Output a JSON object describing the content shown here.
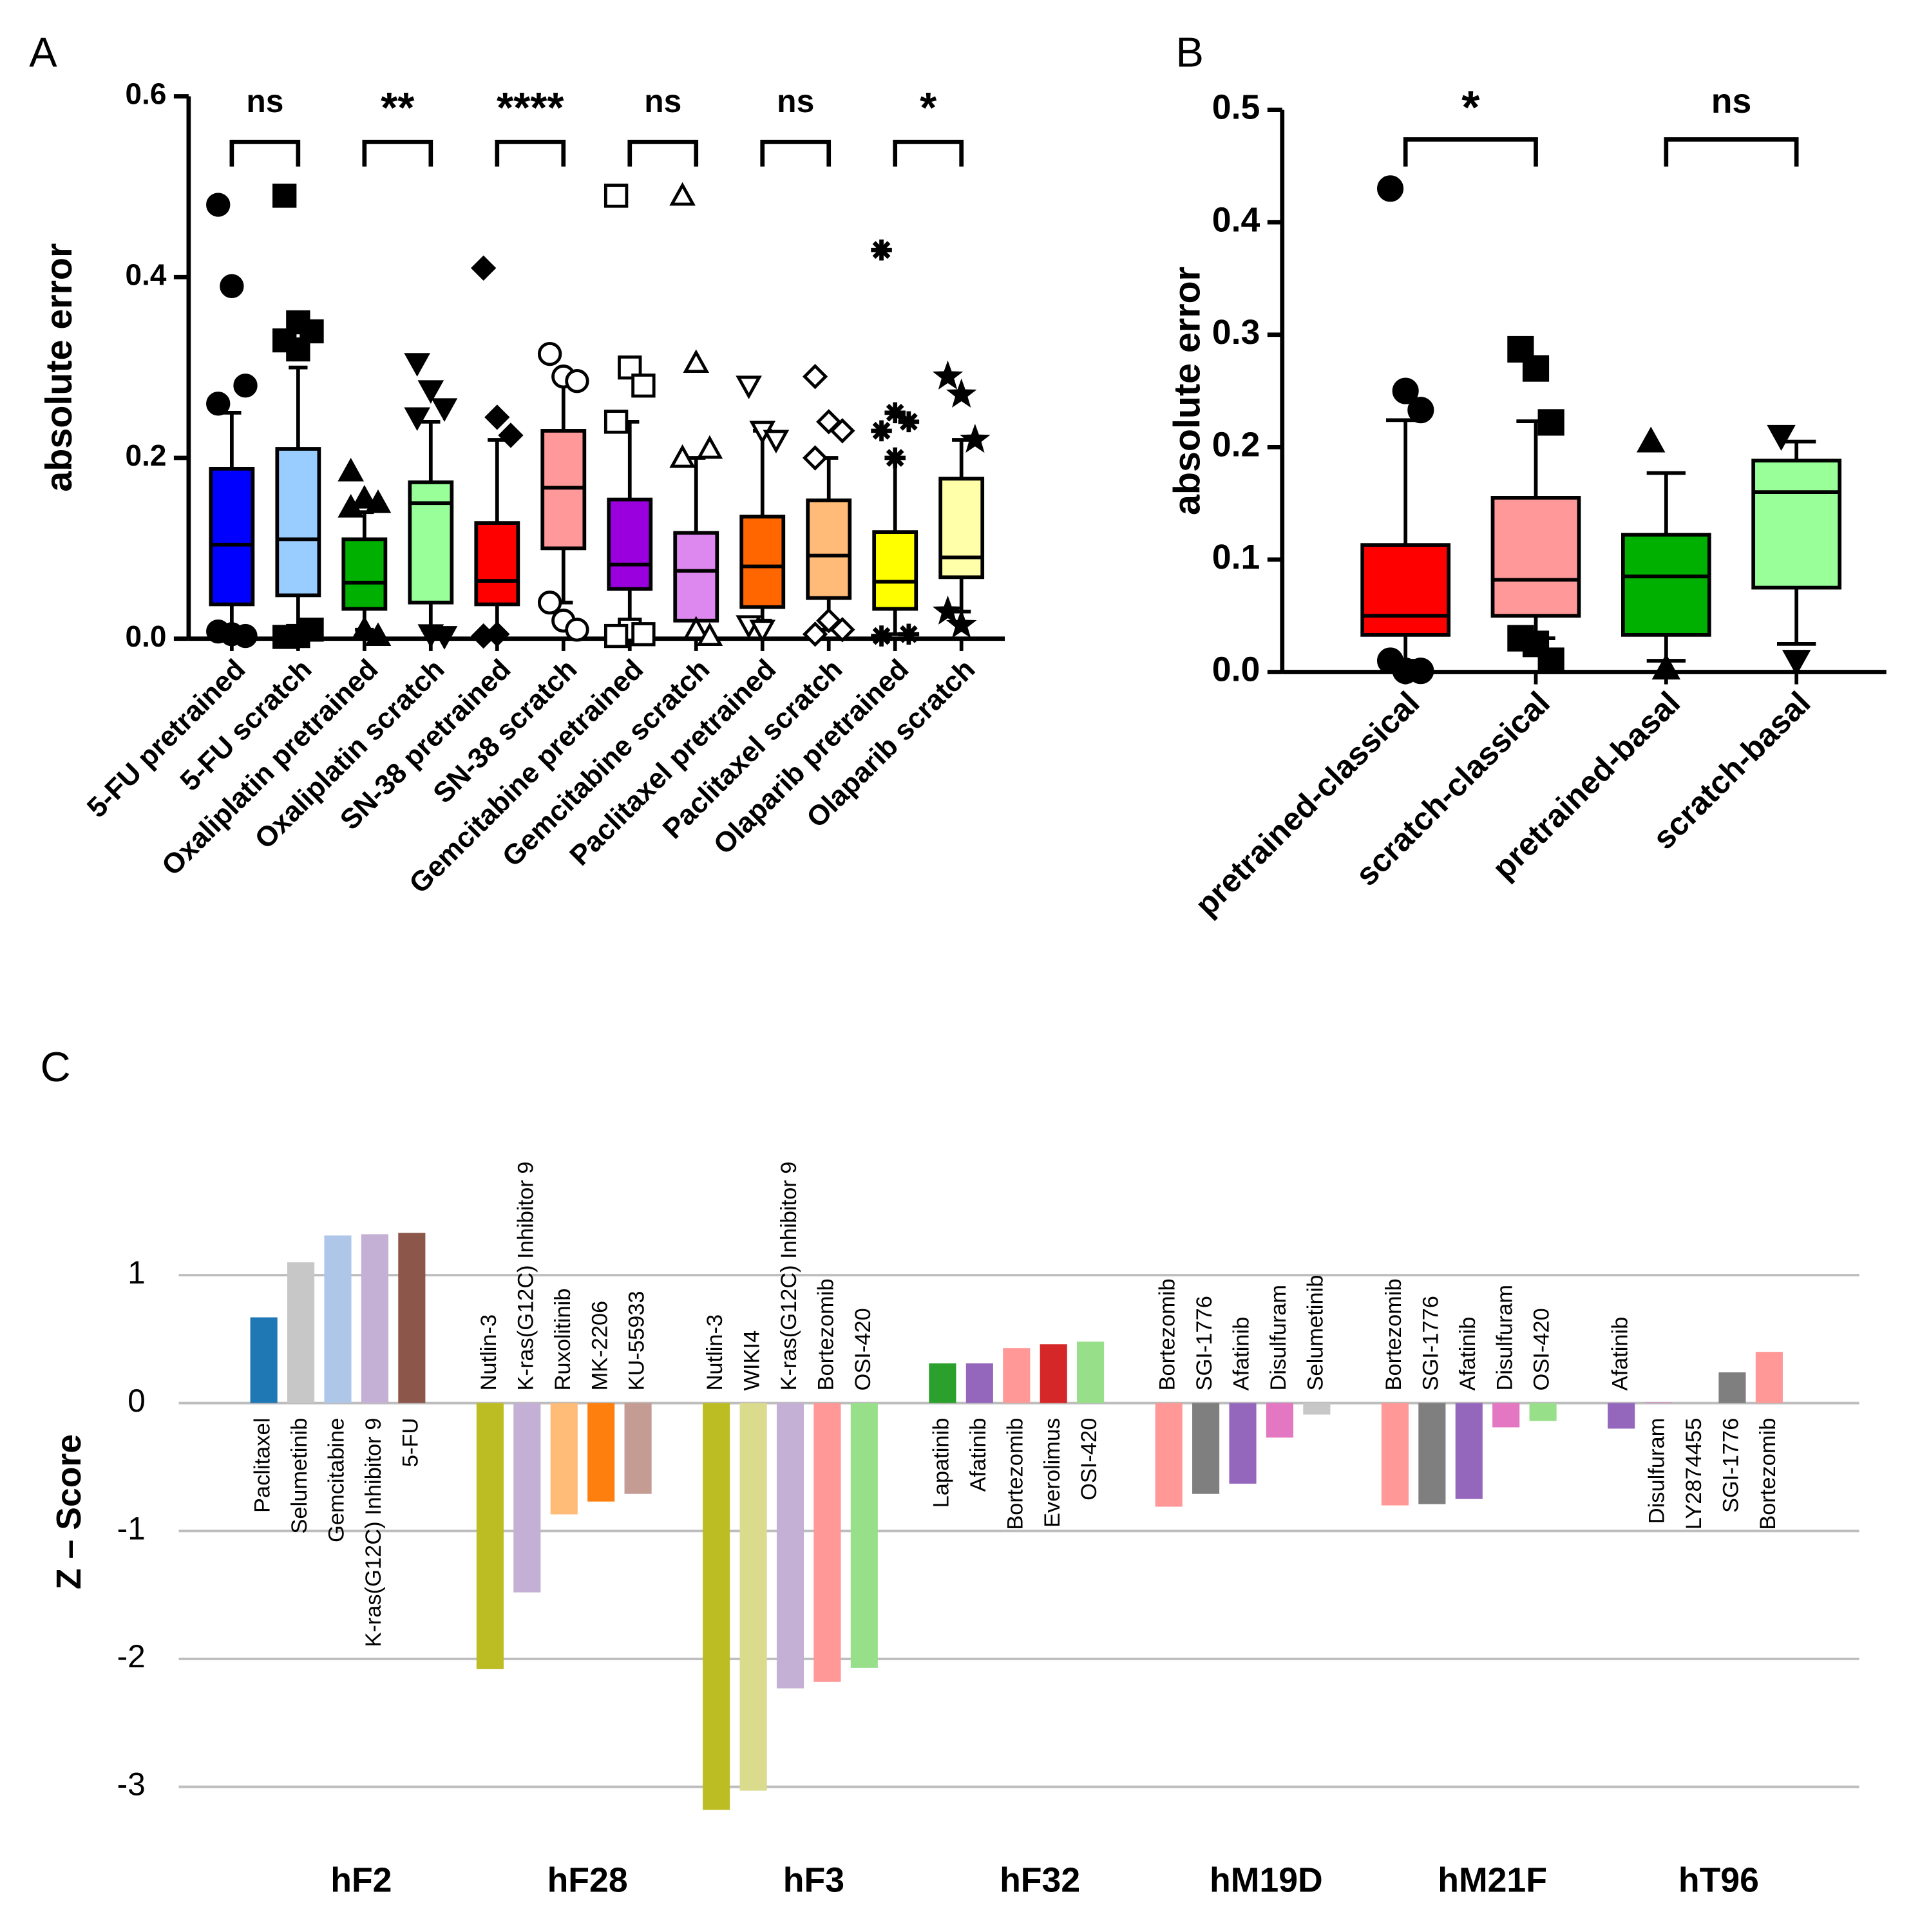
{
  "chart_data": [
    {
      "type": "box",
      "panel_label": "A",
      "y_label": "absolute error",
      "ylim": [
        0,
        0.6
      ],
      "yticks": [
        {
          "value": 0,
          "label": "0.0"
        },
        {
          "value": 0.2,
          "label": "0.2"
        },
        {
          "value": 0.4,
          "label": "0.4"
        },
        {
          "value": 0.6,
          "label": "0.6"
        }
      ],
      "categories": [
        "5-FU pretrained",
        "5-FU scratch",
        "Oxaliplatin pretrained",
        "Oxaliplatin scratch",
        "SN-38 pretrained",
        "SN-38 scratch",
        "Gemcitabine pretrained",
        "Gemcitabine scratch",
        "Paclitaxel pretrained",
        "Paclitaxel scratch",
        "Olaparib pretrained",
        "Olaparib scratch"
      ],
      "boxes": [
        {
          "color": "#0000ff",
          "marker": "circle",
          "filled": true,
          "whisker_low": 0.01,
          "q1": 0.038,
          "median": 0.104,
          "q3": 0.188,
          "whisker_high": 0.25,
          "outliers": [
            0.48,
            0.39,
            0.28,
            0.26,
            0.005,
            0.003,
            0.008
          ]
        },
        {
          "color": "#99ccff",
          "marker": "square",
          "filled": true,
          "whisker_low": 0.01,
          "q1": 0.048,
          "median": 0.11,
          "q3": 0.21,
          "whisker_high": 0.3,
          "outliers": [
            0.49,
            0.35,
            0.34,
            0.33,
            0.32,
            0.01,
            0.002,
            0.003
          ]
        },
        {
          "color": "#00b000",
          "marker": "triangle",
          "filled": true,
          "whisker_low": 0.01,
          "q1": 0.033,
          "median": 0.062,
          "q3": 0.11,
          "whisker_high": 0.14,
          "outliers": [
            0.185,
            0.155,
            0.15,
            0.145,
            0.01,
            0.003
          ]
        },
        {
          "color": "#99ff99",
          "marker": "down-triangle",
          "filled": true,
          "whisker_low": 0.01,
          "q1": 0.04,
          "median": 0.15,
          "q3": 0.173,
          "whisker_high": 0.24,
          "outliers": [
            0.305,
            0.275,
            0.255,
            0.245,
            0.005,
            0.003
          ]
        },
        {
          "color": "#ff0000",
          "marker": "diamond",
          "filled": true,
          "whisker_low": 0.005,
          "q1": 0.038,
          "median": 0.064,
          "q3": 0.128,
          "whisker_high": 0.22,
          "outliers": [
            0.41,
            0.245,
            0.225,
            0.003,
            0.005
          ]
        },
        {
          "color": "#ff9999",
          "marker": "circle",
          "filled": false,
          "whisker_low": 0.04,
          "q1": 0.1,
          "median": 0.167,
          "q3": 0.23,
          "whisker_high": 0.29,
          "outliers": [
            0.315,
            0.29,
            0.285,
            0.04,
            0.02,
            0.01
          ]
        },
        {
          "color": "#9900dd",
          "marker": "square",
          "filled": false,
          "whisker_low": 0.01,
          "q1": 0.055,
          "median": 0.082,
          "q3": 0.154,
          "whisker_high": 0.24,
          "outliers": [
            0.49,
            0.3,
            0.28,
            0.24,
            0.01,
            0.005,
            0.003
          ]
        },
        {
          "color": "#dd88ee",
          "marker": "triangle",
          "filled": false,
          "whisker_low": 0.005,
          "q1": 0.02,
          "median": 0.075,
          "q3": 0.117,
          "whisker_high": 0.2,
          "outliers": [
            0.49,
            0.305,
            0.21,
            0.2,
            0.01,
            0.003
          ]
        },
        {
          "color": "#ff6600",
          "marker": "down-triangle",
          "filled": false,
          "whisker_low": 0.02,
          "q1": 0.035,
          "median": 0.08,
          "q3": 0.135,
          "whisker_high": 0.23,
          "outliers": [
            0.28,
            0.23,
            0.22,
            0.015,
            0.01
          ]
        },
        {
          "color": "#ffbb77",
          "marker": "diamond",
          "filled": false,
          "whisker_low": 0.01,
          "q1": 0.045,
          "median": 0.092,
          "q3": 0.153,
          "whisker_high": 0.2,
          "outliers": [
            0.29,
            0.24,
            0.23,
            0.2,
            0.02,
            0.01,
            0.005
          ]
        },
        {
          "color": "#ffff00",
          "marker": "asterisk",
          "filled": true,
          "whisker_low": 0.005,
          "q1": 0.033,
          "median": 0.063,
          "q3": 0.118,
          "whisker_high": 0.2,
          "outliers": [
            0.43,
            0.25,
            0.24,
            0.23,
            0.2,
            0.005,
            0.003
          ]
        },
        {
          "color": "#ffffaa",
          "marker": "star",
          "filled": true,
          "whisker_low": 0.03,
          "q1": 0.068,
          "median": 0.09,
          "q3": 0.177,
          "whisker_high": 0.22,
          "outliers": [
            0.29,
            0.27,
            0.22,
            0.03,
            0.015
          ]
        }
      ],
      "comparisons": [
        {
          "pair": [
            0,
            1
          ],
          "label": "ns"
        },
        {
          "pair": [
            2,
            3
          ],
          "label": "**"
        },
        {
          "pair": [
            4,
            5
          ],
          "label": "****"
        },
        {
          "pair": [
            6,
            7
          ],
          "label": "ns"
        },
        {
          "pair": [
            8,
            9
          ],
          "label": "ns"
        },
        {
          "pair": [
            10,
            11
          ],
          "label": "*"
        }
      ]
    },
    {
      "type": "box",
      "panel_label": "B",
      "y_label": "absolute error",
      "ylim": [
        0,
        0.5
      ],
      "yticks": [
        {
          "value": 0,
          "label": "0.0"
        },
        {
          "value": 0.1,
          "label": "0.1"
        },
        {
          "value": 0.2,
          "label": "0.2"
        },
        {
          "value": 0.3,
          "label": "0.3"
        },
        {
          "value": 0.4,
          "label": "0.4"
        },
        {
          "value": 0.5,
          "label": "0.5"
        }
      ],
      "categories": [
        "pretrained-classical",
        "scratch-classical",
        "pretrained-basal",
        "scratch-basal"
      ],
      "boxes": [
        {
          "color": "#ff0000",
          "marker": "circle",
          "filled": true,
          "whisker_low": 0.01,
          "q1": 0.033,
          "median": 0.05,
          "q3": 0.113,
          "whisker_high": 0.224,
          "outliers": [
            0.43,
            0.25,
            0.233,
            0.01,
            0.001,
            0.001
          ]
        },
        {
          "color": "#ff9999",
          "marker": "square",
          "filled": true,
          "whisker_low": 0.03,
          "q1": 0.05,
          "median": 0.082,
          "q3": 0.155,
          "whisker_high": 0.223,
          "outliers": [
            0.287,
            0.27,
            0.222,
            0.03,
            0.025,
            0.01
          ]
        },
        {
          "color": "#00b000",
          "marker": "triangle",
          "filled": true,
          "whisker_low": 0.01,
          "q1": 0.033,
          "median": 0.085,
          "q3": 0.122,
          "whisker_high": 0.177,
          "outliers": [
            0.205,
            0.003
          ]
        },
        {
          "color": "#99ff99",
          "marker": "down-triangle",
          "filled": true,
          "whisker_low": 0.025,
          "q1": 0.075,
          "median": 0.16,
          "q3": 0.188,
          "whisker_high": 0.205,
          "outliers": [
            0.21,
            0.01
          ]
        }
      ],
      "comparisons": [
        {
          "pair": [
            0,
            1
          ],
          "label": "*"
        },
        {
          "pair": [
            2,
            3
          ],
          "label": "ns"
        }
      ]
    },
    {
      "type": "bar",
      "panel_label": "C",
      "y_label": "Z – Score",
      "ylim": [
        -3.3,
        1.6
      ],
      "yticks": [
        1,
        0,
        -1,
        -2,
        -3
      ],
      "grid": true,
      "groups": [
        {
          "name": "hF2",
          "bars": [
            {
              "label": "Paclitaxel",
              "value": 0.67,
              "color": "#1f77b4"
            },
            {
              "label": "Selumetinib",
              "value": 1.1,
              "color": "#c7c7c7"
            },
            {
              "label": "Gemcitabine",
              "value": 1.31,
              "color": "#aec7e8"
            },
            {
              "label": "K-ras(G12C) Inhibitor 9",
              "value": 1.32,
              "color": "#c5b0d5"
            },
            {
              "label": "5-FU",
              "value": 1.33,
              "color": "#8c564b"
            }
          ]
        },
        {
          "name": "hF28",
          "bars": [
            {
              "label": "Nutlin-3",
              "value": -2.08,
              "color": "#bcbd22"
            },
            {
              "label": "K-ras(G12C) Inhibitor 9",
              "value": -1.48,
              "color": "#c5b0d5"
            },
            {
              "label": "Ruxolitinib",
              "value": -0.87,
              "color": "#ffbb78"
            },
            {
              "label": "MK-2206",
              "value": -0.77,
              "color": "#ff7f0e"
            },
            {
              "label": "KU-55933",
              "value": -0.71,
              "color": "#c49c94"
            }
          ]
        },
        {
          "name": "hF3",
          "bars": [
            {
              "label": "Nutlin-3",
              "value": -3.18,
              "color": "#bcbd22"
            },
            {
              "label": "WIKI4",
              "value": -3.03,
              "color": "#dbdb8d"
            },
            {
              "label": "K-ras(G12C) Inhibitor 9",
              "value": -2.23,
              "color": "#c5b0d5"
            },
            {
              "label": "Bortezomib",
              "value": -2.18,
              "color": "#ff9896"
            },
            {
              "label": "OSI-420",
              "value": -2.07,
              "color": "#98df8a"
            }
          ]
        },
        {
          "name": "hF32",
          "bars": [
            {
              "label": "Lapatinib",
              "value": 0.31,
              "color": "#2ca02c"
            },
            {
              "label": "Afatinib",
              "value": 0.31,
              "color": "#9467bd"
            },
            {
              "label": "Bortezomib",
              "value": 0.43,
              "color": "#ff9896"
            },
            {
              "label": "Everolimus",
              "value": 0.46,
              "color": "#d62728"
            },
            {
              "label": "OSI-420",
              "value": 0.48,
              "color": "#98df8a"
            }
          ]
        },
        {
          "name": "hM19D",
          "bars": [
            {
              "label": "Bortezomib",
              "value": -0.81,
              "color": "#ff9896"
            },
            {
              "label": "SGI-1776",
              "value": -0.71,
              "color": "#7f7f7f"
            },
            {
              "label": "Afatinib",
              "value": -0.63,
              "color": "#9467bd"
            },
            {
              "label": "Disulfuram",
              "value": -0.27,
              "color": "#e377c2"
            },
            {
              "label": "Selumetinib",
              "value": -0.09,
              "color": "#c7c7c7"
            }
          ]
        },
        {
          "name": "hM21F",
          "bars": [
            {
              "label": "Bortezomib",
              "value": -0.8,
              "color": "#ff9896"
            },
            {
              "label": "SGI-1776",
              "value": -0.79,
              "color": "#7f7f7f"
            },
            {
              "label": "Afatinib",
              "value": -0.75,
              "color": "#9467bd"
            },
            {
              "label": "Disulfuram",
              "value": -0.19,
              "color": "#e377c2"
            },
            {
              "label": "OSI-420",
              "value": -0.14,
              "color": "#98df8a"
            }
          ]
        },
        {
          "name": "hT96",
          "bars": [
            {
              "label": "Afatinib",
              "value": -0.2,
              "color": "#9467bd"
            },
            {
              "label": "Disulfuram",
              "value": 0.005,
              "color": "#e377c2"
            },
            {
              "label": "LY2874455",
              "value": 0,
              "color": "#bcbd22"
            },
            {
              "label": "SGI-1776",
              "value": 0.24,
              "color": "#7f7f7f"
            },
            {
              "label": "Bortezomib",
              "value": 0.4,
              "color": "#ff9896"
            }
          ]
        }
      ]
    }
  ]
}
